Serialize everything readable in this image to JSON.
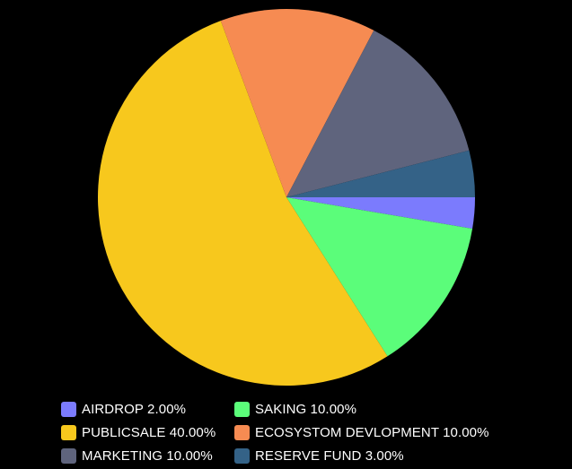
{
  "chart_data": {
    "type": "pie",
    "slices": [
      {
        "label": "AIRDROP",
        "value": 2,
        "display": "AIRDROP 2.00%",
        "color": "#7b7bfd"
      },
      {
        "label": "SAKING",
        "value": 10,
        "display": "SAKING 10.00%",
        "color": "#5bfd7a"
      },
      {
        "label": "PUBLICSALE",
        "value": 40,
        "display": "PUBLICSALE 40.00%",
        "color": "#f7c81d"
      },
      {
        "label": "ECOSYSTOM DEVLOPMENT",
        "value": 10,
        "display": "ECOSYSTOM DEVLOPMENT 10.00%",
        "color": "#f68b52"
      },
      {
        "label": "MARKETING",
        "value": 10,
        "display": "MARKETING 10.00%",
        "color": "#5f647d"
      },
      {
        "label": "RESERVE FUND",
        "value": 3,
        "display": "RESERVE FUND 3.00%",
        "color": "#346287"
      }
    ],
    "legend_placement": "bottom"
  },
  "legend": {
    "items": [
      {
        "text": "AIRDROP 2.00%",
        "color": "#7b7bfd"
      },
      {
        "text": "SAKING 10.00%",
        "color": "#5bfd7a"
      },
      {
        "text": "PUBLICSALE 40.00%",
        "color": "#f7c81d"
      },
      {
        "text": "ECOSYSTOM DEVLOPMENT 10.00%",
        "color": "#f68b52"
      },
      {
        "text": "MARKETING 10.00%",
        "color": "#5f647d"
      },
      {
        "text": "RESERVE FUND 3.00%",
        "color": "#346287"
      }
    ]
  }
}
